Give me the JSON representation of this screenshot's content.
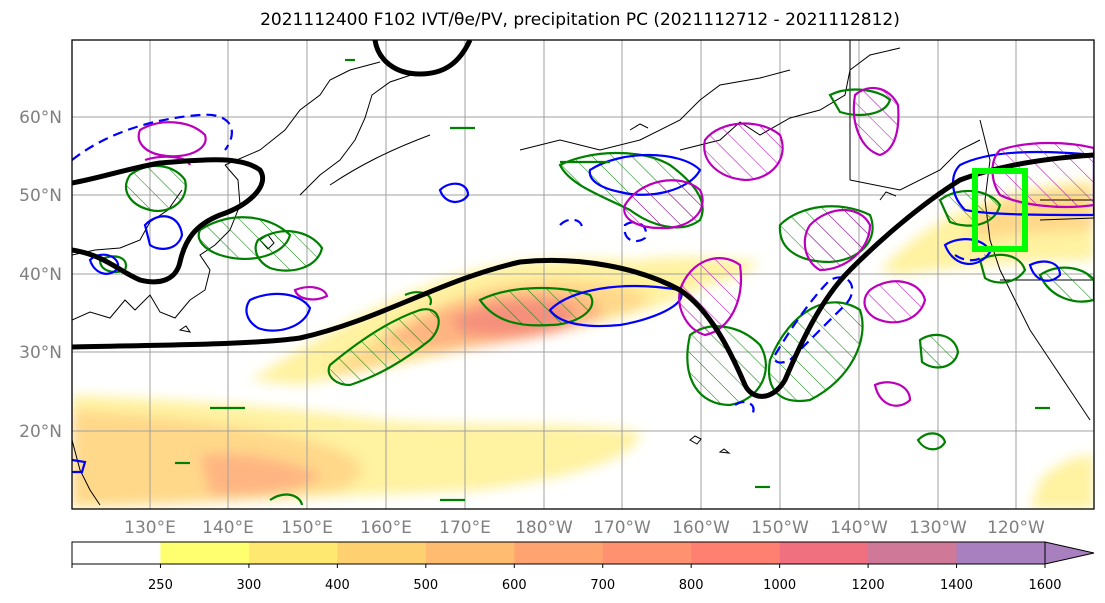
{
  "title": "2021112400 F102 IVT/θe/PV, precipitation PC (2021112712 - 2021112812)",
  "map": {
    "lat_labels": [
      "60°N",
      "50°N",
      "40°N",
      "30°N",
      "20°N"
    ],
    "lon_labels": [
      "130°E",
      "140°E",
      "150°E",
      "160°E",
      "170°E",
      "180°W",
      "170°W",
      "160°W",
      "150°W",
      "140°W",
      "130°W",
      "120°W"
    ],
    "colors": {
      "theta_e_contour": "#000000",
      "contour_blue": "#0000ff",
      "contour_magenta": "#bb00bb",
      "contour_green": "#008000",
      "target_box": "#00ff00",
      "gridlines": "#a0a0a0"
    }
  },
  "colorbar": {
    "ticks": [
      "250",
      "300",
      "400",
      "500",
      "600",
      "700",
      "800",
      "1000",
      "1200",
      "1400",
      "1600"
    ],
    "colors": [
      "#ffffff",
      "#ffff70",
      "#ffe870",
      "#ffd070",
      "#ffbc70",
      "#ffa470",
      "#ff9070",
      "#ff8070",
      "#f07080",
      "#d07898",
      "#a880c0"
    ]
  }
}
